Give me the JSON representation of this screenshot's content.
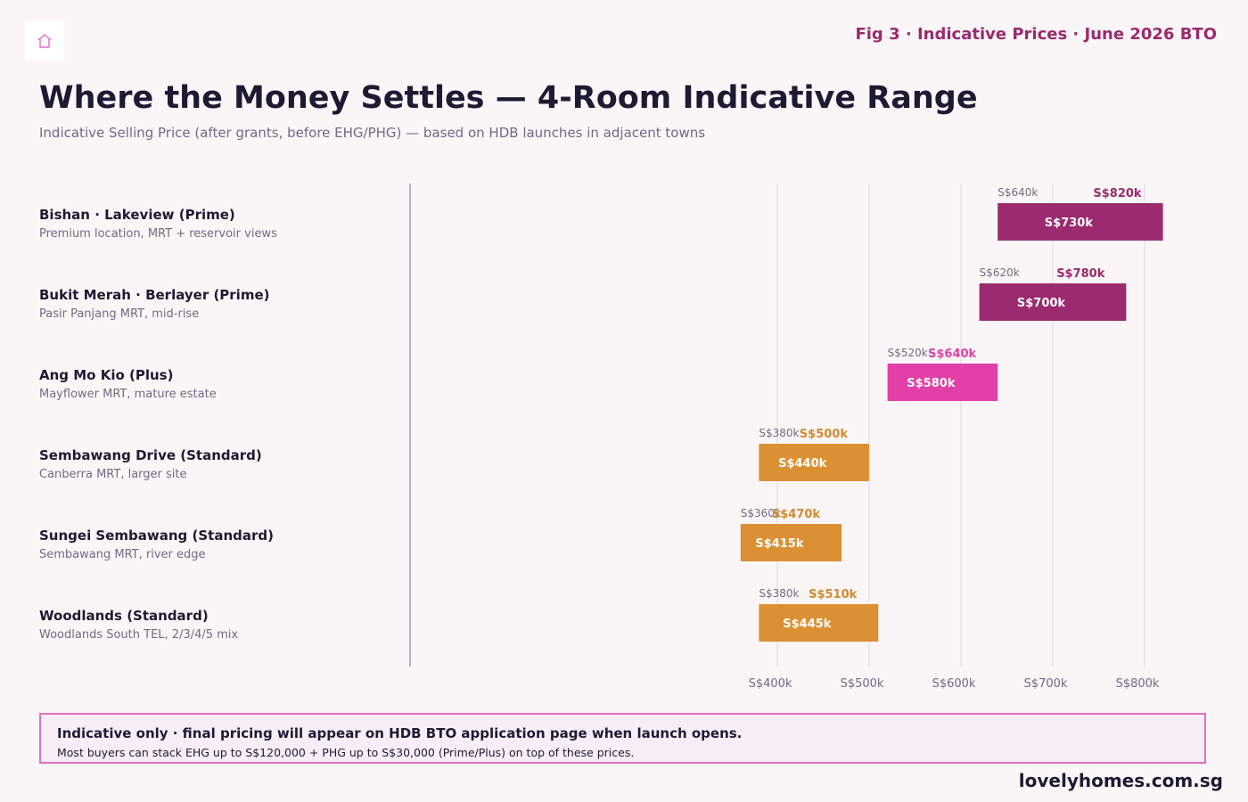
{
  "header": {
    "logo_icon": "home-icon",
    "fig_label": "Fig 3 · Indicative Prices · June 2026 BTO",
    "title": "Where the Money Settles — 4-Room Indicative Range",
    "subtitle": "Indicative Selling Price (after grants, before EHG/PHG) — based on HDB launches in adjacent towns"
  },
  "rows": [
    {
      "name": "Bishan · Lakeview (Prime)",
      "desc": "Premium location, MRT + reservoir views"
    },
    {
      "name": "Bukit Merah · Berlayer (Prime)",
      "desc": "Pasir Panjang MRT, mid-rise"
    },
    {
      "name": "Ang Mo Kio (Plus)",
      "desc": "Mayflower MRT, mature estate"
    },
    {
      "name": "Sembawang Drive (Standard)",
      "desc": "Canberra MRT, larger site"
    },
    {
      "name": "Sungei Sembawang (Standard)",
      "desc": "Sembawang MRT, river edge"
    },
    {
      "name": "Woodlands (Standard)",
      "desc": "Woodlands South TEL, 2/3/4/5 mix"
    }
  ],
  "chart_data": {
    "type": "bar",
    "subtype": "floating-range",
    "categories": [
      "Bishan · Lakeview (Prime)",
      "Bukit Merah · Berlayer (Prime)",
      "Ang Mo Kio (Plus)",
      "Sembawang Drive (Standard)",
      "Sungei Sembawang (Standard)",
      "Woodlands (Standard)"
    ],
    "tiers": [
      "Prime",
      "Prime",
      "Plus",
      "Standard",
      "Standard",
      "Standard"
    ],
    "low": [
      640,
      620,
      520,
      380,
      360,
      380
    ],
    "high": [
      820,
      780,
      640,
      500,
      470,
      510
    ],
    "mid": [
      730,
      700,
      580,
      440,
      415,
      445
    ],
    "low_labels": [
      "S$640k",
      "S$620k",
      "S$520k",
      "S$380k",
      "S$360k",
      "S$380k"
    ],
    "high_labels": [
      "S$820k",
      "S$780k",
      "S$640k",
      "S$500k",
      "S$470k",
      "S$510k"
    ],
    "mid_labels": [
      "S$730k",
      "S$700k",
      "S$580k",
      "S$440k",
      "S$415k",
      "S$445k"
    ],
    "xticks": [
      400,
      500,
      600,
      700,
      800
    ],
    "xtick_labels": [
      "S$400k",
      "S$500k",
      "S$600k",
      "S$700k",
      "S$800k"
    ],
    "xlim": [
      0,
      830
    ],
    "xlabel": "",
    "ylabel": "",
    "grid": true,
    "tier_colors": {
      "Prime": "#9b2a6e",
      "Plus": "#e23fa8",
      "Standard": "#dc9034"
    },
    "tier_label_colors": {
      "Prime": "#9b2a6e",
      "Plus": "#e23fa8",
      "Standard": "#d28a2c"
    }
  },
  "note": {
    "main": "Indicative only · final pricing will appear on HDB BTO application page when launch opens.",
    "sub": "Most buyers can stack EHG up to S$120,000 + PHG up to S$30,000 (Prime/Plus) on top of these prices."
  },
  "footer": {
    "site": "lovelyhomes.com.sg"
  }
}
